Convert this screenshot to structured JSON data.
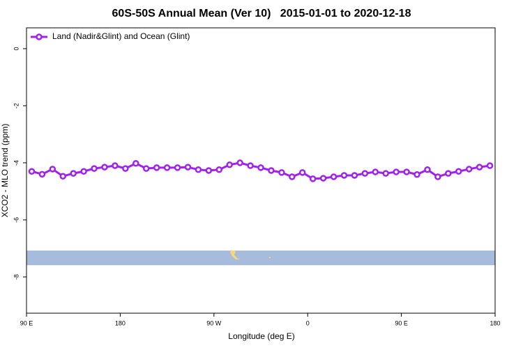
{
  "chart_data": {
    "type": "line",
    "title": "60S-50S Annual Mean (Ver 10)   2015-01-01 to 2020-12-18",
    "x_label": "Longitude (deg E)",
    "y_label": "XCO2 - MLO trend (ppm)",
    "x": [
      95,
      105,
      115,
      125,
      135,
      145,
      155,
      165,
      175,
      185,
      195,
      205,
      215,
      225,
      235,
      245,
      255,
      265,
      275,
      285,
      295,
      305,
      315,
      325,
      335,
      345,
      355,
      365,
      375,
      385,
      395,
      405,
      415,
      425,
      435,
      445,
      455,
      465,
      475,
      485,
      495,
      505,
      515,
      525,
      535
    ],
    "series": [
      {
        "name": "Land (Nadir&Glint) and Ocean (Glint)",
        "color": "#a020f0",
        "values": [
          -4.3,
          -4.4,
          -4.22,
          -4.47,
          -4.37,
          -4.3,
          -4.2,
          -4.15,
          -4.1,
          -4.2,
          -4.02,
          -4.2,
          -4.17,
          -4.17,
          -4.17,
          -4.15,
          -4.24,
          -4.27,
          -4.24,
          -4.07,
          -4.0,
          -4.1,
          -4.17,
          -4.27,
          -4.34,
          -4.49,
          -4.34,
          -4.56,
          -4.54,
          -4.49,
          -4.44,
          -4.44,
          -4.37,
          -4.32,
          -4.37,
          -4.32,
          -4.32,
          -4.41,
          -4.24,
          -4.49,
          -4.37,
          -4.3,
          -4.22,
          -4.15,
          -4.1
        ]
      }
    ],
    "xlim": [
      90,
      540
    ],
    "xticks": [
      {
        "value": 90,
        "label": "90 E"
      },
      180,
      {
        "value": 270,
        "label": "90 W"
      },
      {
        "value": 360,
        "label": "0"
      },
      {
        "value": 450,
        "label": "90 E"
      },
      {
        "value": 540,
        "label": "180"
      }
    ],
    "ylim": [
      -9.27,
      0.73
    ],
    "yticks": [
      0,
      -2,
      -4,
      -6,
      -8
    ],
    "legend": "top-left"
  }
}
